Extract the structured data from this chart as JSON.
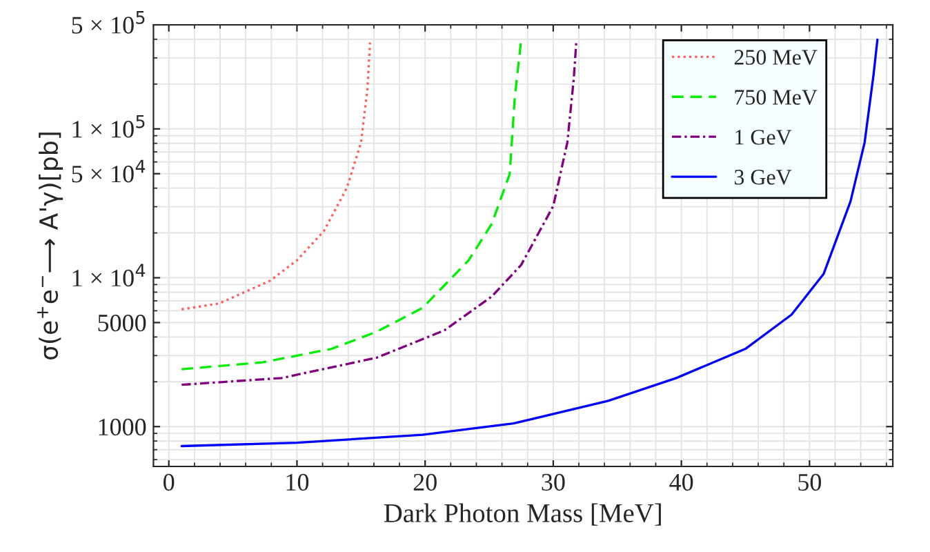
{
  "chart_data": {
    "type": "line",
    "xlabel": "Dark Photon Mass [MeV]",
    "ylabel": "σ(e$^{+}$e$^{−}$⟶ A'γ)[pb]",
    "xlim": [
      -1.2,
      56.5
    ],
    "xticks": [
      0,
      10,
      20,
      30,
      40,
      50
    ],
    "ylim": [
      540,
      500000
    ],
    "yticks": [
      {
        "value": 1000,
        "label": "1000"
      },
      {
        "value": 5000,
        "label": "5000"
      },
      {
        "value": 10000,
        "label": "1 × 10$^{4}$"
      },
      {
        "value": 50000,
        "label": "5 × 10$^{4}$"
      },
      {
        "value": 100000,
        "label": "1 × 10$^{5}$"
      },
      {
        "value": 500000,
        "label": "5 × 10$^{5}$"
      }
    ],
    "log": "y",
    "grid": true,
    "legend": "top right",
    "series": [
      {
        "name": "250 MeV",
        "color": "#ff6060",
        "line_style": "dotted",
        "x": [
          1,
          3.9,
          7.9,
          10,
          12.1,
          13.9,
          15,
          15.5,
          15.7
        ],
        "values": [
          6140,
          6700,
          9550,
          13100,
          20600,
          40200,
          81000,
          186000,
          380000
        ]
      },
      {
        "name": "750 MeV",
        "color": "#00ee00",
        "line_style": "dashed",
        "x": [
          1,
          7.3,
          12.7,
          16.2,
          19.8,
          23.4,
          25.2,
          26.6,
          27,
          27.5
        ],
        "values": [
          2430,
          2700,
          3330,
          4330,
          6270,
          13100,
          23000,
          49700,
          163000,
          398000
        ]
      },
      {
        "name": "1 GeV",
        "color": "#800080",
        "line_style": "dashdot",
        "x": [
          1,
          8.8,
          16.2,
          21.5,
          25.2,
          27.5,
          30,
          31.1,
          31.6,
          31.8
        ],
        "values": [
          1910,
          2120,
          2900,
          4430,
          7480,
          12200,
          30300,
          81000,
          216000,
          385000
        ]
      },
      {
        "name": "3 GeV",
        "color": "#0000ff",
        "line_style": "solid",
        "x": [
          1,
          10,
          19.8,
          26.9,
          34.3,
          39.6,
          45,
          48.6,
          51.1,
          53.2,
          54.3,
          55,
          55.3
        ],
        "values": [
          740,
          780,
          881,
          1050,
          1490,
          2120,
          3330,
          5650,
          10600,
          32600,
          81000,
          232000,
          398000
        ]
      }
    ]
  }
}
